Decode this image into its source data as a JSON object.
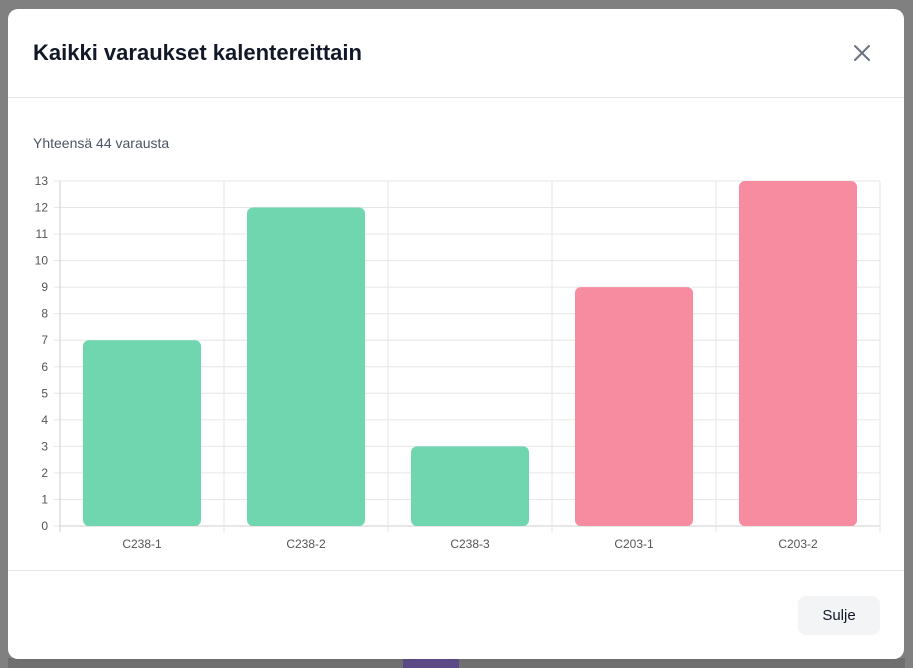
{
  "modal": {
    "title": "Kaikki varaukset kalentereittain",
    "total_label": "Yhteensä 44 varausta",
    "close_button_label": "Sulje",
    "close_icon": "close-icon"
  },
  "chart_data": {
    "type": "bar",
    "categories": [
      "C238-1",
      "C238-2",
      "C238-3",
      "C203-1",
      "C203-2"
    ],
    "values": [
      7,
      12,
      3,
      9,
      13
    ],
    "colors": [
      "#6fd6b0",
      "#6fd6b0",
      "#6fd6b0",
      "#f78b9f",
      "#f78b9f"
    ],
    "title": "",
    "xlabel": "",
    "ylabel": "",
    "ylim": [
      0,
      13
    ],
    "yticks": [
      "0",
      "1",
      "2",
      "3",
      "4",
      "5",
      "6",
      "7",
      "8",
      "9",
      "10",
      "11",
      "12",
      "13"
    ],
    "grid": true,
    "legend": "none"
  }
}
